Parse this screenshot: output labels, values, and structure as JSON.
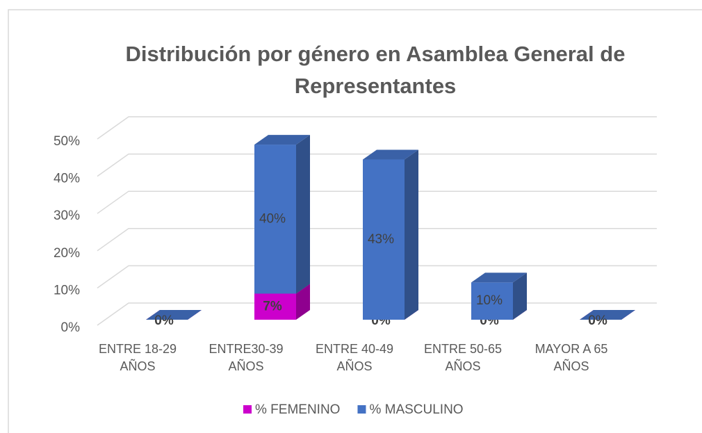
{
  "chart_data": {
    "type": "bar3d-stacked",
    "title": "Distribución por género en Asamblea General de Representantes",
    "categories": [
      "ENTRE 18-29 AÑOS",
      "ENTRE30-39 AÑOS",
      "ENTRE 40-49 AÑOS",
      "ENTRE 50-65 AÑOS",
      "MAYOR A 65 AÑOS"
    ],
    "series": [
      {
        "name": "% FEMENINO",
        "color": "#cc00cc",
        "values": [
          0,
          7,
          0,
          0,
          0
        ],
        "value_labels": [
          "0%",
          "7%",
          "0%",
          "0%",
          "0%"
        ]
      },
      {
        "name": "% MASCULINO",
        "color": "#4472c4",
        "values": [
          0,
          40,
          43,
          10,
          0
        ],
        "value_labels": [
          "0%",
          "40%",
          "43%",
          "10%",
          "0%"
        ]
      }
    ],
    "ylim": [
      0,
      50
    ],
    "yticks": [
      {
        "value": 0,
        "label": "0%"
      },
      {
        "value": 10,
        "label": "10%"
      },
      {
        "value": 20,
        "label": "20%"
      },
      {
        "value": 30,
        "label": "30%"
      },
      {
        "value": 40,
        "label": "40%"
      },
      {
        "value": 50,
        "label": "50%"
      }
    ],
    "grid": true,
    "legend": "bottom"
  }
}
